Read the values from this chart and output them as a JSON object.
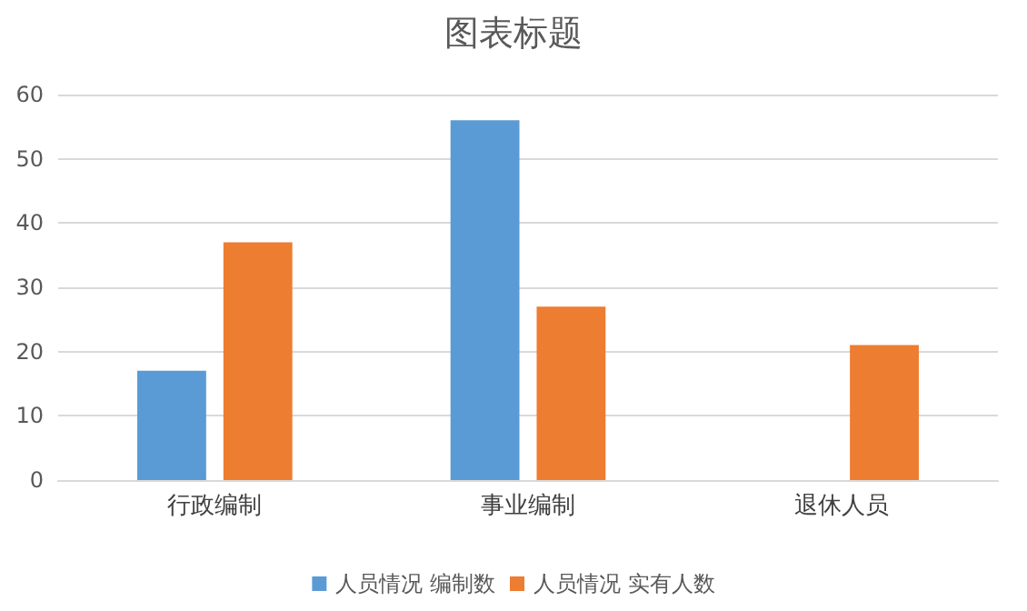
{
  "chart_data": {
    "type": "bar",
    "title": "图表标题",
    "categories": [
      "行政编制",
      "事业编制",
      "退休人员"
    ],
    "series": [
      {
        "name": "人员情况 编制数",
        "color": "#5b9bd5",
        "values": [
          17,
          56,
          null
        ]
      },
      {
        "name": "人员情况 实有人数",
        "color": "#ed7d31",
        "values": [
          37,
          27,
          21
        ]
      }
    ],
    "ylim": [
      0,
      60
    ],
    "yticks": [
      0,
      10,
      20,
      30,
      40,
      50,
      60
    ],
    "grid": "y",
    "legend": "bottom"
  }
}
